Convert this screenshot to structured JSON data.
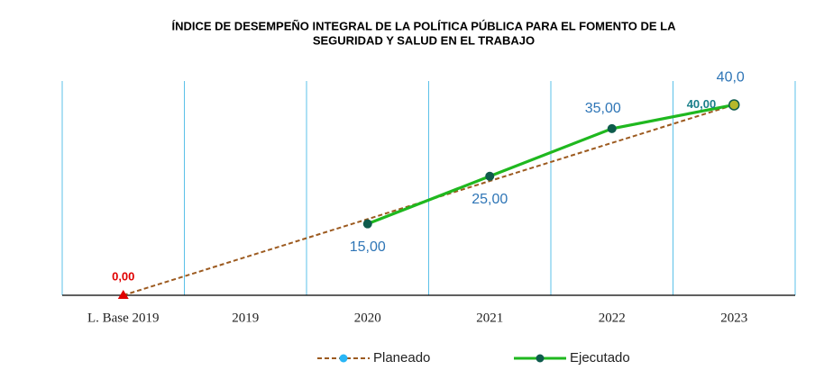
{
  "chart_data": {
    "type": "line",
    "title": [
      "ÍNDICE DE DESEMPEÑO INTEGRAL DE LA POLÍTICA PÚBLICA PARA EL FOMENTO DE LA",
      "SEGURIDAD Y SALUD EN EL TRABAJO"
    ],
    "categories": [
      "L. Base 2019",
      "2019",
      "2020",
      "2021",
      "2022",
      "2023"
    ],
    "ylim": [
      0,
      45
    ],
    "series": [
      {
        "name": "Planeado",
        "color": "#9c5a1f",
        "marker_color": "#29b6f6",
        "dashed": true,
        "values": [
          0,
          8,
          16,
          24,
          32,
          40
        ],
        "value_labels": [
          "0,00",
          null,
          null,
          null,
          null,
          "40,00"
        ],
        "value_label_colors": [
          "#e00000",
          null,
          null,
          null,
          null,
          "#1a7f8a"
        ]
      },
      {
        "name": "Ejecutado",
        "color": "#1fb81f",
        "marker_color": "#0e5b4c",
        "dashed": false,
        "values": [
          null,
          null,
          15,
          25,
          35,
          40
        ],
        "value_labels": [
          null,
          null,
          "15,00",
          "25,00",
          "35,00",
          "40,0"
        ],
        "value_label_colors": [
          null,
          null,
          "#2e75b6",
          "#2e75b6",
          "#2e75b6",
          "#2e75b6"
        ]
      }
    ],
    "legend": "bottom"
  }
}
